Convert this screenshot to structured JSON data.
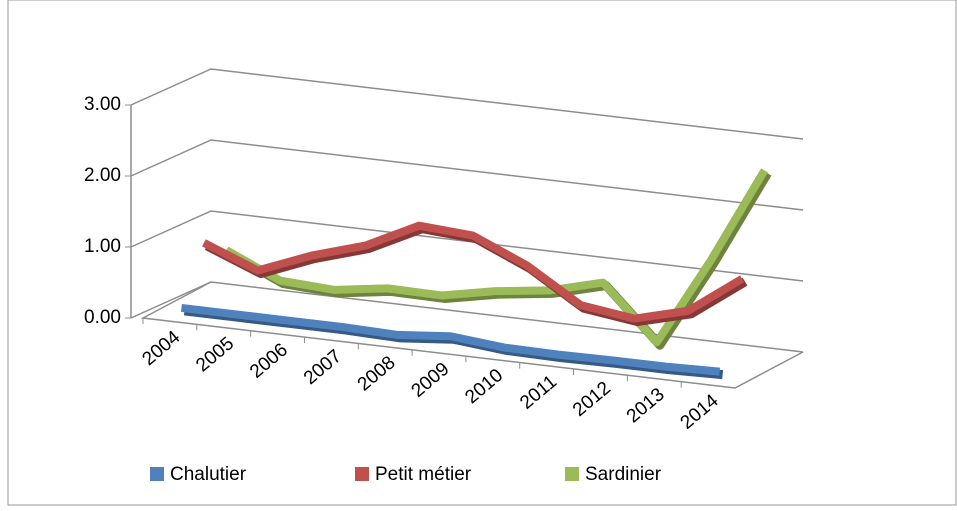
{
  "chart_data": {
    "type": "line3d",
    "categories": [
      "2004",
      "2005",
      "2006",
      "2007",
      "2008",
      "2009",
      "2010",
      "2011",
      "2012",
      "2013",
      "2014"
    ],
    "series": [
      {
        "name": "Chalutier",
        "color": "#4f81bd",
        "values": [
          0.1,
          0.1,
          0.1,
          0.1,
          0.08,
          0.15,
          0.08,
          0.07,
          0.08,
          0.08,
          0.1
        ]
      },
      {
        "name": "Petit métier",
        "color": "#c0504d",
        "values": [
          0.85,
          0.55,
          0.85,
          1.08,
          1.45,
          1.4,
          1.07,
          0.6,
          0.5,
          0.7,
          1.24
        ]
      },
      {
        "name": "Sardinier",
        "color": "#9bbb59",
        "values": [
          0.58,
          0.24,
          0.2,
          0.31,
          0.3,
          0.45,
          0.55,
          0.75,
          0.0,
          1.24,
          2.6
        ]
      }
    ],
    "ylim": [
      0,
      3
    ],
    "yticks": [
      {
        "value": 0,
        "label": "0.00"
      },
      {
        "value": 1,
        "label": "1.00"
      },
      {
        "value": 2,
        "label": "2.00"
      },
      {
        "value": 3,
        "label": "3.00"
      }
    ],
    "grid": true,
    "legend": "bottom"
  }
}
